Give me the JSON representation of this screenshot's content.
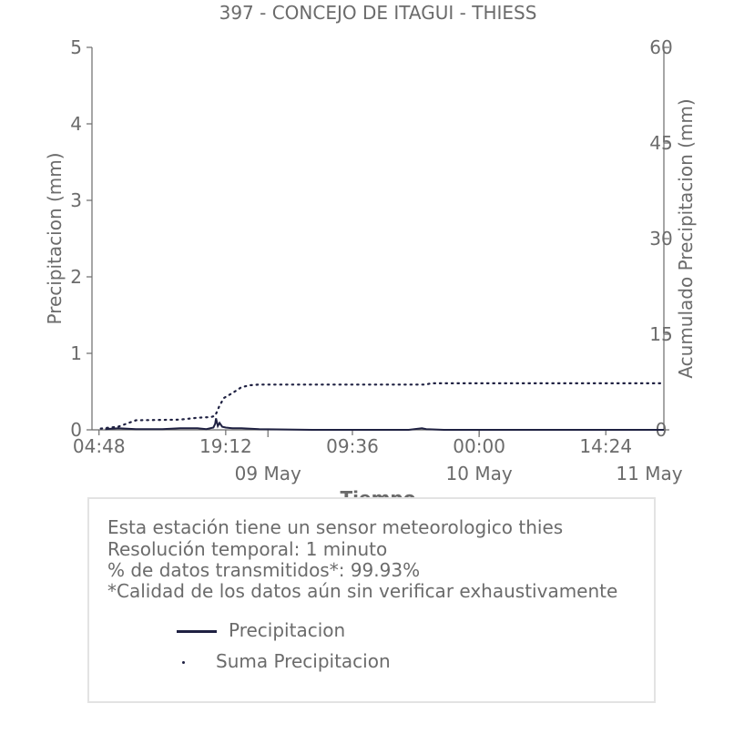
{
  "chart_data": {
    "type": "line",
    "title": "397 - CONCEJO DE ITAGUI - THIESS",
    "xlabel": "Tiempo",
    "ylabel": "Precipitacion (mm)",
    "y2label": "Acumulado Precipitacion (mm)",
    "ylim": [
      0,
      5
    ],
    "y2lim": [
      0,
      60
    ],
    "yticks": [
      "0",
      "1",
      "2",
      "3",
      "4",
      "5"
    ],
    "y2ticks": [
      "0",
      "15",
      "30",
      "45",
      "60"
    ],
    "xlim_hours": [
      0,
      65
    ],
    "x_time_ticks": [
      {
        "h": 0.8,
        "label": "04:48"
      },
      {
        "h": 15.2,
        "label": "19:12"
      },
      {
        "h": 29.6,
        "label": "09:36"
      },
      {
        "h": 44.0,
        "label": "00:00"
      },
      {
        "h": 58.4,
        "label": "14:24"
      }
    ],
    "x_date_ticks": [
      {
        "h": 20.0,
        "label": "09 May"
      },
      {
        "h": 44.0,
        "label": "10 May"
      },
      {
        "h": 68.0,
        "label": "11 May"
      }
    ],
    "grid": false,
    "series": [
      {
        "name": "Precipitacion",
        "style": "solid",
        "color": "#1f2142",
        "x": [
          1.5,
          3,
          5,
          8,
          10,
          12,
          13,
          13.8,
          14,
          14.1,
          14.3,
          14.5,
          14.8,
          15.2,
          16,
          17,
          19,
          25,
          30,
          36,
          37.5,
          38,
          40,
          45,
          55,
          65
        ],
        "y": [
          0.01,
          0.02,
          0.01,
          0.01,
          0.02,
          0.02,
          0.01,
          0.03,
          0.08,
          0.15,
          0.05,
          0.09,
          0.04,
          0.03,
          0.02,
          0.02,
          0.01,
          0.0,
          0.0,
          0.0,
          0.02,
          0.01,
          0.0,
          0.0,
          0.0,
          0.0
        ]
      },
      {
        "name": "Suma Precipitacion",
        "style": "dotted",
        "color": "#1f2142",
        "x": [
          1,
          3,
          4,
          5,
          10,
          12,
          13.5,
          14,
          14.5,
          15,
          16,
          17,
          18,
          19,
          22,
          30,
          38,
          38.5,
          45,
          55,
          65
        ],
        "y": [
          0.2,
          0.5,
          1.0,
          1.5,
          1.6,
          1.9,
          2.0,
          2.2,
          3.8,
          5.0,
          5.8,
          6.7,
          7.0,
          7.1,
          7.1,
          7.1,
          7.1,
          7.3,
          7.3,
          7.3,
          7.3
        ]
      }
    ]
  },
  "info": {
    "line1": "Esta estación tiene un sensor meteorologico thies",
    "line2": "Resolución temporal: 1 minuto",
    "line3": "% de datos transmitidos*: 99.93%",
    "line4": "*Calidad de los datos aún sin verificar exhaustivamente"
  },
  "legend": {
    "item1": "Precipitacion",
    "item2": "Suma Precipitacion"
  },
  "colors": {
    "series": "#1f2142",
    "text": "#6b6b6b",
    "axis": "#6b6b6b",
    "box_border": "#e3e3e3"
  }
}
